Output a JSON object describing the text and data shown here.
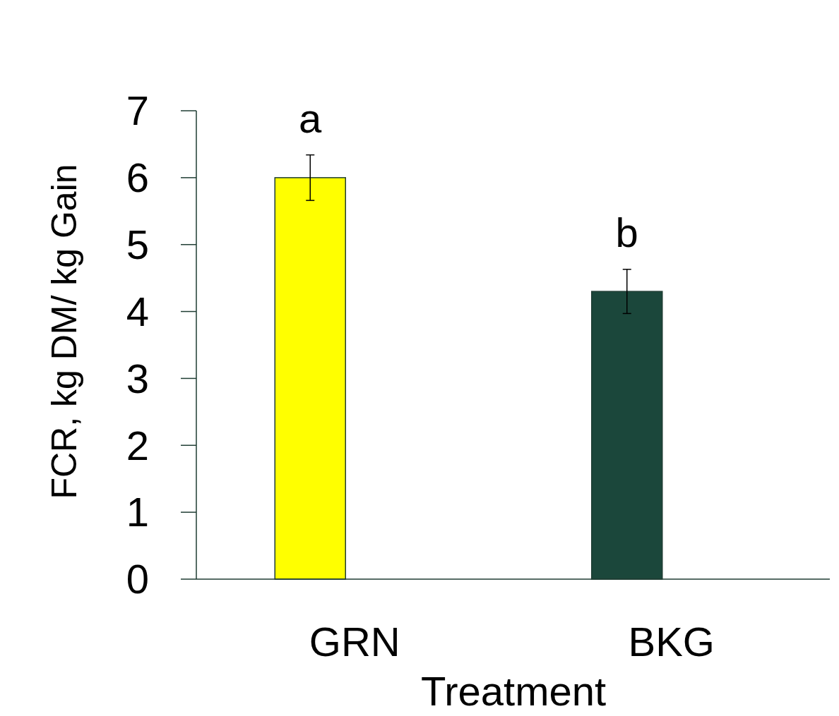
{
  "chart_data": {
    "type": "bar",
    "xlabel": "Treatment",
    "ylabel": "FCR, kg DM/ kg Gain",
    "categories": [
      "GRN",
      "BKG"
    ],
    "values": [
      6.0,
      4.3
    ],
    "errors": [
      0.34,
      0.33
    ],
    "colors": [
      "#ffff00",
      "#1b473b"
    ],
    "ylim": [
      0,
      7
    ],
    "yticks": [
      0,
      1,
      2,
      3,
      4,
      5,
      6,
      7
    ],
    "grid": false,
    "annotations": [
      "a",
      "b"
    ]
  }
}
